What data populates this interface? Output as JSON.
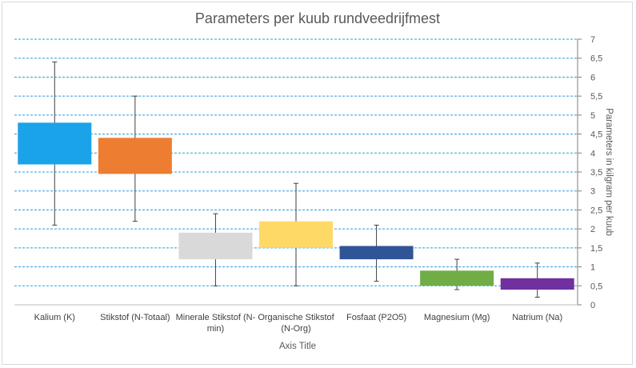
{
  "chart_data": {
    "type": "box",
    "title": "Parameters per kuub rundveedrijfmest",
    "xlabel": "Axis Title",
    "ylabel": "Parameters in kilgram per kuub",
    "ylim": [
      0,
      7
    ],
    "ytick_step": 0.5,
    "ytick_labels": [
      "0",
      "0,5",
      "1",
      "1,5",
      "2",
      "2,5",
      "3",
      "3,5",
      "4",
      "4,5",
      "5",
      "5,5",
      "6",
      "6,5",
      "7"
    ],
    "y_axis_position": "right",
    "grid": true,
    "grid_style": "dashed",
    "legend": "none",
    "categories": [
      {
        "label_lines": [
          "Kalium (K)"
        ],
        "whisker_low": 2.1,
        "box_low": 3.7,
        "box_high": 4.8,
        "whisker_high": 6.4,
        "color": "#1aa3e8"
      },
      {
        "label_lines": [
          "Stikstof (N-Totaal)"
        ],
        "whisker_low": 2.2,
        "box_low": 3.45,
        "box_high": 4.4,
        "whisker_high": 5.5,
        "color": "#ed7d31"
      },
      {
        "label_lines": [
          "Minerale Stikstof (N-",
          "min)"
        ],
        "whisker_low": 0.5,
        "box_low": 1.2,
        "box_high": 1.9,
        "whisker_high": 2.4,
        "color": "#d9d9d9"
      },
      {
        "label_lines": [
          "Organische Stikstof",
          "(N-Org)"
        ],
        "whisker_low": 0.5,
        "box_low": 1.5,
        "box_high": 2.2,
        "whisker_high": 3.2,
        "color": "#ffd966"
      },
      {
        "label_lines": [
          "Fosfaat (P2O5)"
        ],
        "whisker_low": 0.62,
        "box_low": 1.2,
        "box_high": 1.55,
        "whisker_high": 2.1,
        "color": "#2f5597"
      },
      {
        "label_lines": [
          "Magnesium (Mg)"
        ],
        "whisker_low": 0.4,
        "box_low": 0.5,
        "box_high": 0.9,
        "whisker_high": 1.2,
        "color": "#70ad47"
      },
      {
        "label_lines": [
          "Natrium (Na)"
        ],
        "whisker_low": 0.2,
        "box_low": 0.4,
        "box_high": 0.7,
        "whisker_high": 1.1,
        "color": "#7030a0"
      }
    ]
  }
}
